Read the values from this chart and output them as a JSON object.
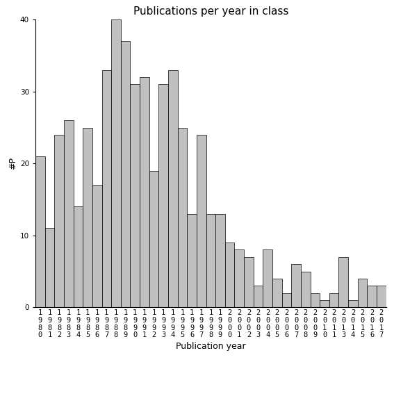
{
  "title": "Publications per year in class",
  "xlabel": "Publication year",
  "ylabel": "#P",
  "years": [
    1980,
    1981,
    1982,
    1983,
    1984,
    1985,
    1986,
    1987,
    1988,
    1989,
    1990,
    1991,
    1992,
    1993,
    1994,
    1995,
    1996,
    1997,
    1998,
    1999,
    2000,
    2001,
    2002,
    2003,
    2004,
    2005,
    2006,
    2007,
    2008,
    2009,
    2010,
    2011,
    2013,
    2014,
    2015,
    2016,
    2017
  ],
  "values": [
    21,
    11,
    24,
    26,
    14,
    25,
    17,
    33,
    40,
    37,
    31,
    32,
    19,
    31,
    33,
    25,
    13,
    24,
    13,
    13,
    9,
    8,
    7,
    3,
    8,
    4,
    2,
    6,
    5,
    2,
    1,
    2,
    7,
    1,
    4,
    3,
    3
  ],
  "bar_color": "#c0c0c0",
  "bar_edge_color": "#000000",
  "ylim": [
    0,
    40
  ],
  "yticks": [
    0,
    10,
    20,
    30,
    40
  ],
  "background_color": "#ffffff",
  "title_fontsize": 11,
  "label_fontsize": 9,
  "tick_fontsize": 7.5
}
